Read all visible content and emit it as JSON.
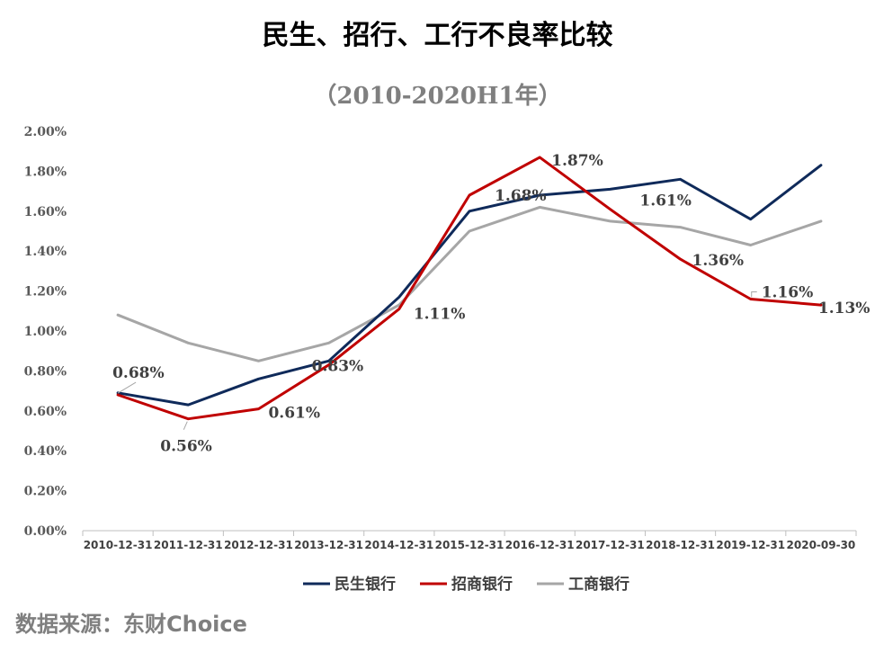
{
  "chart_data": {
    "type": "line",
    "title": "民生、招行、工行不良率比较",
    "subtitle": "（2010-2020H1年）",
    "xlabel": "",
    "ylabel": "",
    "ylim": [
      0,
      2.0
    ],
    "y_ticks": [
      "0.00%",
      "0.20%",
      "0.40%",
      "0.60%",
      "0.80%",
      "1.00%",
      "1.20%",
      "1.40%",
      "1.60%",
      "1.80%",
      "2.00%"
    ],
    "categories": [
      "2010-12-31",
      "2011-12-31",
      "2012-12-31",
      "2013-12-31",
      "2014-12-31",
      "2015-12-31",
      "2016-12-31",
      "2017-12-31",
      "2018-12-31",
      "2019-12-31",
      "2020-09-30"
    ],
    "series": [
      {
        "name": "民生银行",
        "color": "#0f2a5a",
        "values": [
          0.69,
          0.63,
          0.76,
          0.85,
          1.17,
          1.6,
          1.68,
          1.71,
          1.76,
          1.56,
          1.83
        ]
      },
      {
        "name": "招商银行",
        "color": "#c00000",
        "values": [
          0.68,
          0.56,
          0.61,
          0.83,
          1.11,
          1.68,
          1.87,
          1.61,
          1.36,
          1.16,
          1.13
        ]
      },
      {
        "name": "工商银行",
        "color": "#a6a6a6",
        "values": [
          1.08,
          0.94,
          0.85,
          0.94,
          1.13,
          1.5,
          1.62,
          1.55,
          1.52,
          1.43,
          1.55
        ]
      }
    ],
    "data_labels": [
      "0.68%",
      "0.56%",
      "0.61%",
      "0.83%",
      "1.11%",
      "1.68%",
      "1.87%",
      "1.61%",
      "1.36%",
      "1.16%",
      "1.13%"
    ],
    "grid": false,
    "legend": "bottom"
  },
  "source_text": "数据来源：东财Choice"
}
